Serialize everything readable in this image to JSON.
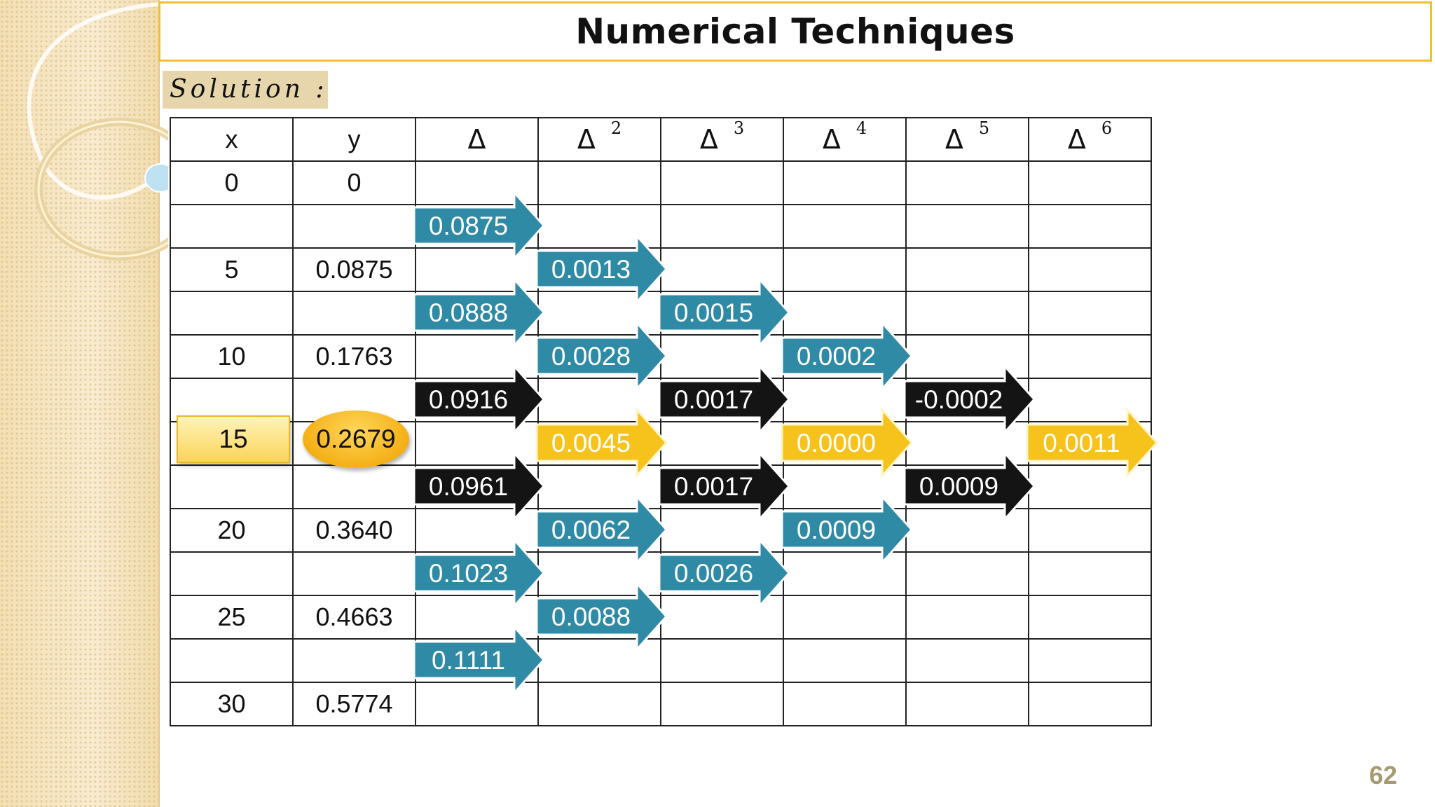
{
  "title": "Numerical Techniques",
  "solution_label": "Solution :",
  "page_number": "62",
  "table": {
    "headers": [
      "x",
      "y",
      "Δ",
      "Δ",
      "Δ",
      "Δ",
      "Δ",
      "Δ"
    ],
    "header_powers": [
      "",
      "",
      "",
      "2",
      "3",
      "4",
      "5",
      "6"
    ],
    "rows": [
      {
        "x": "0",
        "y": "0"
      },
      {
        "x": "",
        "y": ""
      },
      {
        "x": "5",
        "y": "0.0875"
      },
      {
        "x": "",
        "y": ""
      },
      {
        "x": "10",
        "y": "0.1763"
      },
      {
        "x": "",
        "y": ""
      },
      {
        "x": "15",
        "y": "0.2679"
      },
      {
        "x": "",
        "y": ""
      },
      {
        "x": "20",
        "y": "0.3640"
      },
      {
        "x": "",
        "y": ""
      },
      {
        "x": "25",
        "y": "0.4663"
      },
      {
        "x": "",
        "y": ""
      },
      {
        "x": "30",
        "y": "0.5774"
      }
    ]
  },
  "highlight": {
    "x": "15",
    "y": "0.2679"
  },
  "arrows": [
    {
      "col": 2,
      "row": 1,
      "value": "0.0875",
      "style": "blue"
    },
    {
      "col": 2,
      "row": 3,
      "value": "0.0888",
      "style": "blue"
    },
    {
      "col": 2,
      "row": 5,
      "value": "0.0916",
      "style": "black"
    },
    {
      "col": 2,
      "row": 7,
      "value": "0.0961",
      "style": "black"
    },
    {
      "col": 2,
      "row": 9,
      "value": "0.1023",
      "style": "blue"
    },
    {
      "col": 2,
      "row": 11,
      "value": "0.1111",
      "style": "blue"
    },
    {
      "col": 3,
      "row": 2,
      "value": "0.0013",
      "style": "blue"
    },
    {
      "col": 3,
      "row": 4,
      "value": "0.0028",
      "style": "blue"
    },
    {
      "col": 3,
      "row": 6,
      "value": "0.0045",
      "style": "yellow"
    },
    {
      "col": 3,
      "row": 8,
      "value": "0.0062",
      "style": "blue"
    },
    {
      "col": 3,
      "row": 10,
      "value": "0.0088",
      "style": "blue"
    },
    {
      "col": 4,
      "row": 3,
      "value": "0.0015",
      "style": "blue"
    },
    {
      "col": 4,
      "row": 5,
      "value": "0.0017",
      "style": "black"
    },
    {
      "col": 4,
      "row": 7,
      "value": "0.0017",
      "style": "black"
    },
    {
      "col": 4,
      "row": 9,
      "value": "0.0026",
      "style": "blue"
    },
    {
      "col": 5,
      "row": 4,
      "value": "0.0002",
      "style": "blue"
    },
    {
      "col": 5,
      "row": 6,
      "value": "0.0000",
      "style": "yellow"
    },
    {
      "col": 5,
      "row": 8,
      "value": "0.0009",
      "style": "blue"
    },
    {
      "col": 6,
      "row": 5,
      "value": "-0.0002",
      "style": "black"
    },
    {
      "col": 6,
      "row": 7,
      "value": "0.0009",
      "style": "black"
    },
    {
      "col": 7,
      "row": 6,
      "value": "0.0011",
      "style": "yellow"
    }
  ],
  "colors": {
    "blue": "#2f8aa6",
    "black": "#141414",
    "yellow": "#f6c21c",
    "title_border": "#f0c030"
  }
}
